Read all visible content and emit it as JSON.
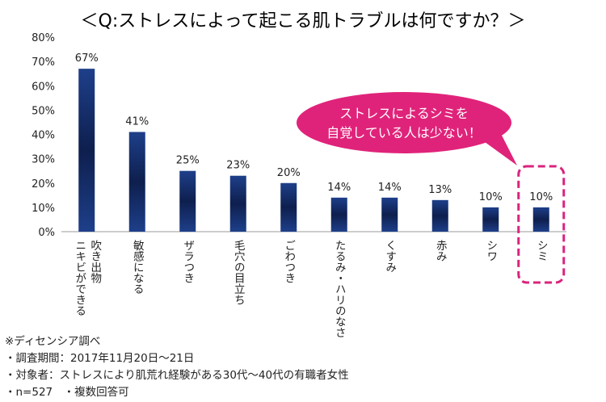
{
  "chart_data": {
    "type": "bar",
    "title": "＜Q:ストレスによって起こる肌トラブルは何ですか？＞",
    "categories": [
      [
        "ニキビができる",
        "吹き出物"
      ],
      [
        "敏感になる"
      ],
      [
        "ザラつき"
      ],
      [
        "毛穴の目立ち"
      ],
      [
        "ごわつき"
      ],
      [
        "たるみ・ハリのなさ"
      ],
      [
        "くすみ"
      ],
      [
        "赤み"
      ],
      [
        "シワ"
      ],
      [
        "シミ"
      ]
    ],
    "values": [
      67,
      41,
      25,
      23,
      20,
      14,
      14,
      13,
      10,
      10
    ],
    "data_labels": [
      "67%",
      "41%",
      "25%",
      "23%",
      "20%",
      "14%",
      "14%",
      "13%",
      "10%",
      "10%"
    ],
    "ylim": [
      0,
      80
    ],
    "yticks": [
      0,
      10,
      20,
      30,
      40,
      50,
      60,
      70,
      80
    ],
    "ytick_labels": [
      "0%",
      "10%",
      "20%",
      "30%",
      "40%",
      "50%",
      "60%",
      "70%",
      "80%"
    ],
    "highlight_index": 9,
    "grid": false,
    "bar_color": "#1e3f8a",
    "bar_color_dark": "#0e1f4e"
  },
  "callout": {
    "lines": [
      "ストレスによるシミを",
      "自覚している人は少ない！"
    ],
    "fill": "#e0237a"
  },
  "highlight_color": "#d9247d",
  "notes": [
    "※ディセンシア調べ",
    "・調査期間：2017年11月20日～21日",
    "・対象者：ストレスにより肌荒れ経験がある30代～40代の有職者女性",
    "・n=527　・複数回答可"
  ]
}
